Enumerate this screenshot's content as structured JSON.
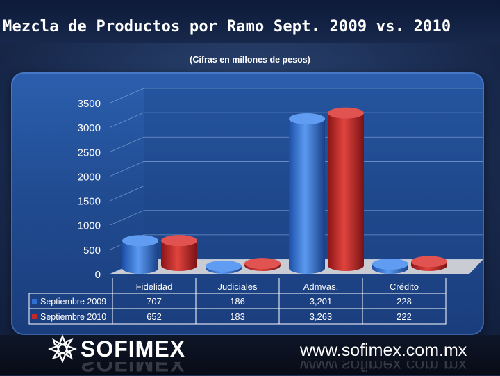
{
  "slide": {
    "title": "Mezcla de Productos por Ramo Sept. 2009 vs. 2010",
    "subtitle": "(Cifras en millones de pesos)"
  },
  "footer": {
    "brand": "SOFIMEX",
    "website": "www.sofimex.com.mx"
  },
  "chart_data": {
    "type": "bar",
    "categories": [
      "Fidelidad",
      "Judiciales",
      "Admvas.",
      "Crédito"
    ],
    "series": [
      {
        "name": "Septiembre 2009",
        "values": [
          707,
          186,
          3201,
          228
        ],
        "labels": [
          "707",
          "186",
          "3,201",
          "228"
        ],
        "color": "#2f6fd0"
      },
      {
        "name": "Septiembre 2010",
        "values": [
          652,
          183,
          3263,
          222
        ],
        "labels": [
          "652",
          "183",
          "3,263",
          "222"
        ],
        "color": "#c0282a"
      }
    ],
    "ylim": [
      0,
      3500
    ],
    "yticks": [
      0,
      500,
      1000,
      1500,
      2000,
      2500,
      3000,
      3500
    ],
    "grid": true,
    "legend": "data-table-left"
  }
}
